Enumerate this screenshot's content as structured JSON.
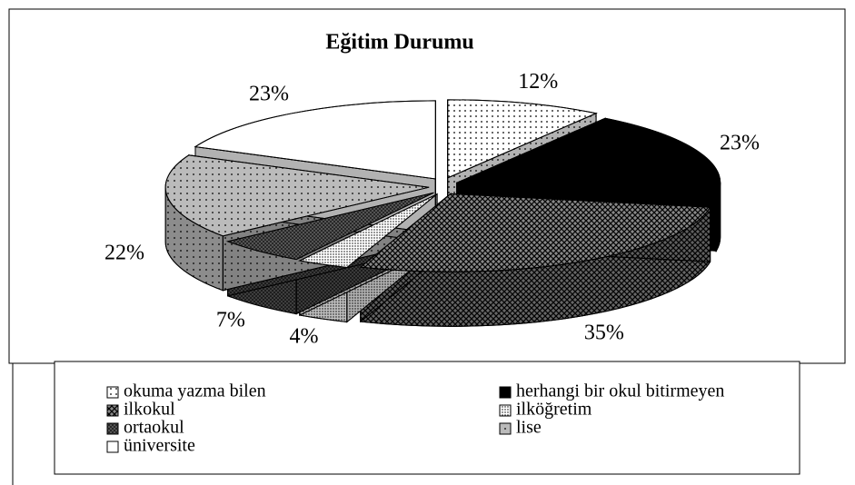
{
  "chart_data": {
    "type": "pie3d",
    "title": "Eğitim Durumu",
    "categories": [
      "okuma yazma bilen",
      "herhangi bir okul bitirmeyen",
      "ilkokul",
      "ilköğretim",
      "ortaokul",
      "lise",
      "üniversite"
    ],
    "values": [
      12,
      23,
      35,
      4,
      7,
      22,
      23
    ],
    "value_labels": [
      "12%",
      "23%",
      "35%",
      "4%",
      "7%",
      "22%",
      "23%"
    ],
    "colors": [
      "#ffffff",
      "#000000",
      "#888888",
      "#ffffff",
      "#666666",
      "#bbbbbb",
      "#ffffff"
    ],
    "legend": "bottom"
  }
}
